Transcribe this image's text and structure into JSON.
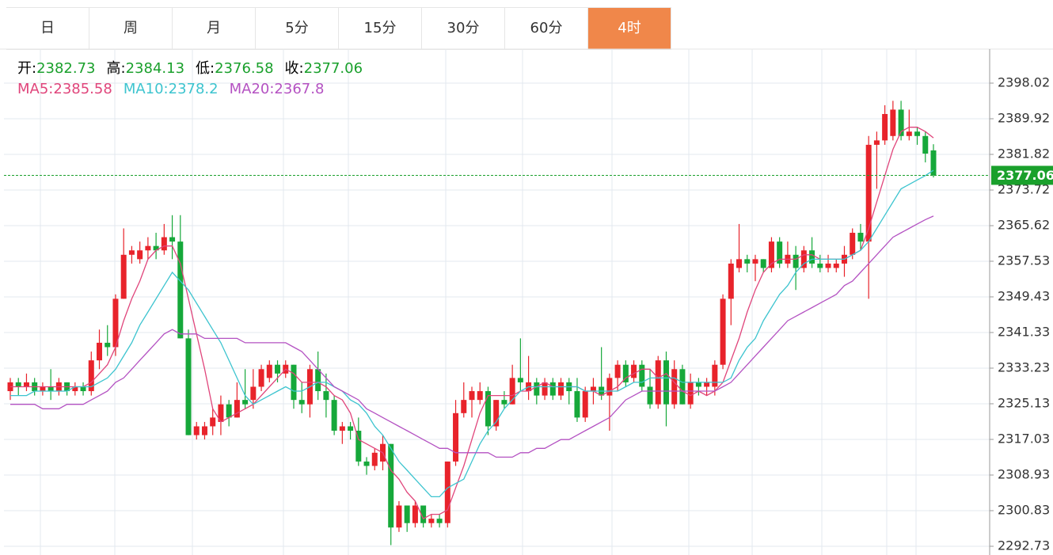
{
  "tabs": [
    "日",
    "周",
    "月",
    "5分",
    "15分",
    "30分",
    "60分",
    "4时"
  ],
  "active_tab": 7,
  "chart_data": {
    "type": "candlestick",
    "info_labels": [
      "开:",
      "高:",
      "低:",
      "收:"
    ],
    "up_color": "#e8232b",
    "down_color": "#16a83a",
    "ylim": [
      2290.75,
      2405.76
    ],
    "yticks": [
      2398.02,
      2389.92,
      2381.82,
      2373.72,
      2365.62,
      2357.53,
      2349.43,
      2341.33,
      2333.23,
      2325.13,
      2317.03,
      2308.93,
      2300.83,
      2292.73
    ],
    "grid": true,
    "ohlc": [
      [
        2328,
        2331,
        2326,
        2330
      ],
      [
        2330,
        2331,
        2327,
        2329
      ],
      [
        2329,
        2332,
        2328,
        2330
      ],
      [
        2330,
        2331,
        2327,
        2328
      ],
      [
        2328,
        2330,
        2327,
        2329
      ],
      [
        2329,
        2333,
        2326,
        2328
      ],
      [
        2328,
        2331,
        2327,
        2330
      ],
      [
        2330,
        2330,
        2327,
        2328
      ],
      [
        2328,
        2330,
        2327,
        2329
      ],
      [
        2329,
        2330,
        2327,
        2328
      ],
      [
        2328,
        2337,
        2327,
        2335
      ],
      [
        2335,
        2342,
        2333,
        2339
      ],
      [
        2339,
        2343,
        2336,
        2338
      ],
      [
        2338,
        2350,
        2336,
        2349
      ],
      [
        2349,
        2365,
        2349,
        2359
      ],
      [
        2359,
        2361,
        2357,
        2360
      ],
      [
        2358,
        2362,
        2357,
        2360
      ],
      [
        2360,
        2363,
        2358,
        2361
      ],
      [
        2361,
        2364,
        2358,
        2360
      ],
      [
        2360,
        2366,
        2359,
        2363
      ],
      [
        2363,
        2368,
        2358,
        2362
      ],
      [
        2362,
        2368,
        2340,
        2340
      ],
      [
        2340,
        2342,
        2318,
        2318
      ],
      [
        2318,
        2321,
        2317,
        2320
      ],
      [
        2318,
        2321,
        2317,
        2320
      ],
      [
        2320,
        2324,
        2318,
        2322
      ],
      [
        2321,
        2327,
        2318,
        2325
      ],
      [
        2325,
        2326,
        2320,
        2322
      ],
      [
        2322,
        2330,
        2322,
        2326
      ],
      [
        2326,
        2333,
        2324,
        2325
      ],
      [
        2326,
        2333,
        2324,
        2329
      ],
      [
        2329,
        2334,
        2328,
        2333
      ],
      [
        2331,
        2335,
        2330,
        2334
      ],
      [
        2334,
        2335,
        2330,
        2332
      ],
      [
        2332,
        2335,
        2331,
        2334
      ],
      [
        2334,
        2334,
        2324,
        2326
      ],
      [
        2326,
        2330,
        2323,
        2325
      ],
      [
        2325,
        2334,
        2322,
        2333
      ],
      [
        2333,
        2337,
        2326,
        2328
      ],
      [
        2328,
        2332,
        2322,
        2326
      ],
      [
        2326,
        2327,
        2318,
        2319
      ],
      [
        2319,
        2321,
        2316,
        2320
      ],
      [
        2320,
        2321,
        2317,
        2319
      ],
      [
        2319,
        2322,
        2311,
        2312
      ],
      [
        2312,
        2313,
        2309,
        2311
      ],
      [
        2311,
        2315,
        2310,
        2314
      ],
      [
        2312,
        2318,
        2310,
        2316
      ],
      [
        2316,
        2316,
        2293,
        2297
      ],
      [
        2297,
        2303,
        2296,
        2302
      ],
      [
        2302,
        2302,
        2296,
        2298
      ],
      [
        2298,
        2303,
        2297,
        2302
      ],
      [
        2302,
        2302,
        2297,
        2298
      ],
      [
        2298,
        2300,
        2297,
        2299
      ],
      [
        2299,
        2300,
        2297,
        2298
      ],
      [
        2298,
        2312,
        2297,
        2312
      ],
      [
        2312,
        2326,
        2311,
        2323
      ],
      [
        2323,
        2330,
        2322,
        2326
      ],
      [
        2326,
        2329,
        2322,
        2328
      ],
      [
        2326,
        2330,
        2325,
        2328
      ],
      [
        2328,
        2329,
        2318,
        2320
      ],
      [
        2320,
        2326,
        2319,
        2326
      ],
      [
        2326,
        2328,
        2324,
        2325
      ],
      [
        2325,
        2334,
        2325,
        2331
      ],
      [
        2331,
        2340,
        2328,
        2330
      ],
      [
        2328,
        2336,
        2326,
        2330
      ],
      [
        2330,
        2331,
        2325,
        2327
      ],
      [
        2327,
        2331,
        2326,
        2330
      ],
      [
        2330,
        2331,
        2326,
        2327
      ],
      [
        2327,
        2331,
        2326,
        2330
      ],
      [
        2330,
        2331,
        2325,
        2328
      ],
      [
        2328,
        2331,
        2321,
        2322
      ],
      [
        2322,
        2329,
        2321,
        2328
      ],
      [
        2328,
        2331,
        2325,
        2329
      ],
      [
        2329,
        2338,
        2326,
        2327
      ],
      [
        2327,
        2332,
        2319,
        2331
      ],
      [
        2331,
        2335,
        2328,
        2334
      ],
      [
        2334,
        2335,
        2329,
        2330
      ],
      [
        2331,
        2335,
        2330,
        2334
      ],
      [
        2334,
        2335,
        2328,
        2329
      ],
      [
        2329,
        2333,
        2324,
        2325
      ],
      [
        2325,
        2336,
        2324,
        2335
      ],
      [
        2335,
        2337,
        2320,
        2325
      ],
      [
        2325,
        2335,
        2324,
        2333
      ],
      [
        2333,
        2334,
        2325,
        2325
      ],
      [
        2325,
        2332,
        2324,
        2330
      ],
      [
        2330,
        2331,
        2327,
        2329
      ],
      [
        2329,
        2331,
        2327,
        2330
      ],
      [
        2329,
        2335,
        2327,
        2334
      ],
      [
        2334,
        2350,
        2333,
        2349
      ],
      [
        2349,
        2358,
        2343,
        2357
      ],
      [
        2356,
        2366,
        2355,
        2358
      ],
      [
        2358,
        2359,
        2355,
        2357
      ],
      [
        2357,
        2359,
        2353,
        2358
      ],
      [
        2358,
        2358,
        2355,
        2356
      ],
      [
        2356,
        2363,
        2355,
        2362
      ],
      [
        2362,
        2363,
        2356,
        2357
      ],
      [
        2357,
        2362,
        2356,
        2359
      ],
      [
        2359,
        2361,
        2351,
        2356
      ],
      [
        2356,
        2361,
        2355,
        2360
      ],
      [
        2360,
        2363,
        2356,
        2357
      ],
      [
        2357,
        2359,
        2355,
        2356
      ],
      [
        2356,
        2359,
        2355,
        2357
      ],
      [
        2356,
        2358,
        2355,
        2357
      ],
      [
        2357,
        2361,
        2354,
        2359
      ],
      [
        2359,
        2365,
        2358,
        2364
      ],
      [
        2364,
        2366,
        2360,
        2362
      ],
      [
        2362,
        2386,
        2349,
        2384
      ],
      [
        2384,
        2387,
        2374,
        2385
      ],
      [
        2385,
        2393,
        2384,
        2391
      ],
      [
        2386,
        2394,
        2385,
        2392
      ],
      [
        2392,
        2394,
        2385,
        2386
      ],
      [
        2386,
        2392,
        2385,
        2387
      ],
      [
        2387,
        2388,
        2384,
        2386
      ],
      [
        2386,
        2387,
        2380,
        2382
      ],
      [
        2382.73,
        2384.13,
        2376.58,
        2377.06
      ]
    ],
    "ma": [
      {
        "name": "MA5:",
        "color": "#e0457b",
        "values": [
          2329,
          2329,
          2329,
          2329,
          2329,
          2329,
          2329,
          2329,
          2329,
          2329,
          2330,
          2332,
          2334,
          2338,
          2344,
          2349,
          2353,
          2358,
          2360,
          2361,
          2361,
          2357,
          2349,
          2341,
          2333,
          2324,
          2321,
          2322,
          2323,
          2324,
          2325,
          2327,
          2329,
          2331,
          2333,
          2332,
          2330,
          2330,
          2330,
          2329,
          2327,
          2326,
          2323,
          2317,
          2316,
          2315,
          2314,
          2310,
          2308,
          2305,
          2303,
          2299,
          2300,
          2300,
          2301,
          2306,
          2311,
          2317,
          2323,
          2327,
          2327,
          2327,
          2327,
          2328,
          2328,
          2329,
          2330,
          2329,
          2329,
          2329,
          2329,
          2328,
          2328,
          2327,
          2328,
          2329,
          2331,
          2332,
          2333,
          2333,
          2331,
          2332,
          2330,
          2328,
          2327,
          2328,
          2327,
          2328,
          2330,
          2335,
          2340,
          2346,
          2351,
          2355,
          2357,
          2358,
          2358,
          2358,
          2359,
          2359,
          2358,
          2358,
          2358,
          2358,
          2359,
          2360,
          2365,
          2371,
          2377,
          2383,
          2387,
          2388,
          2388,
          2387,
          2385.58
        ]
      },
      {
        "name": "MA10:",
        "color": "#3dc4cf",
        "values": [
          2327,
          2327,
          2327,
          2328,
          2328,
          2328,
          2328,
          2328,
          2329,
          2329,
          2329,
          2330,
          2331,
          2333,
          2336,
          2339,
          2343,
          2346,
          2349,
          2352,
          2355,
          2353,
          2351,
          2348,
          2345,
          2342,
          2339,
          2335,
          2331,
          2327,
          2325,
          2326,
          2327,
          2328,
          2329,
          2328,
          2328,
          2329,
          2330,
          2330,
          2329,
          2328,
          2326,
          2325,
          2323,
          2320,
          2318,
          2315,
          2312,
          2310,
          2308,
          2306,
          2304,
          2304,
          2306,
          2307,
          2308,
          2312,
          2316,
          2319,
          2321,
          2324,
          2326,
          2328,
          2329,
          2329,
          2329,
          2329,
          2329,
          2329,
          2329,
          2328,
          2328,
          2328,
          2328,
          2328,
          2329,
          2330,
          2330,
          2331,
          2331,
          2331,
          2331,
          2330,
          2330,
          2330,
          2330,
          2330,
          2330,
          2331,
          2335,
          2338,
          2340,
          2344,
          2347,
          2350,
          2352,
          2355,
          2357,
          2358,
          2358,
          2358,
          2358,
          2358,
          2359,
          2360,
          2362,
          2365,
          2368,
          2371,
          2374,
          2375,
          2376,
          2377,
          2378.2
        ]
      },
      {
        "name": "MA20:",
        "color": "#b452c2",
        "values": [
          2325,
          2325,
          2325,
          2325,
          2324,
          2324,
          2324,
          2325,
          2325,
          2325,
          2326,
          2327,
          2328,
          2330,
          2331,
          2333,
          2335,
          2337,
          2339,
          2341,
          2342,
          2341,
          2341,
          2341,
          2340,
          2340,
          2340,
          2340,
          2340,
          2339,
          2339,
          2339,
          2339,
          2339,
          2339,
          2338,
          2337,
          2335,
          2333,
          2331,
          2329,
          2328,
          2327,
          2326,
          2324,
          2323,
          2322,
          2321,
          2320,
          2319,
          2318,
          2317,
          2316,
          2315,
          2315,
          2314,
          2314,
          2314,
          2314,
          2314,
          2313,
          2313,
          2313,
          2314,
          2314,
          2315,
          2315,
          2316,
          2317,
          2317,
          2318,
          2319,
          2320,
          2321,
          2322,
          2324,
          2326,
          2327,
          2328,
          2328,
          2328,
          2328,
          2328,
          2328,
          2328,
          2328,
          2328,
          2328,
          2329,
          2330,
          2332,
          2334,
          2336,
          2338,
          2340,
          2342,
          2344,
          2345,
          2346,
          2347,
          2348,
          2349,
          2350,
          2352,
          2353,
          2355,
          2357,
          2359,
          2361,
          2363,
          2364,
          2365,
          2366,
          2367,
          2367.8
        ]
      }
    ]
  }
}
